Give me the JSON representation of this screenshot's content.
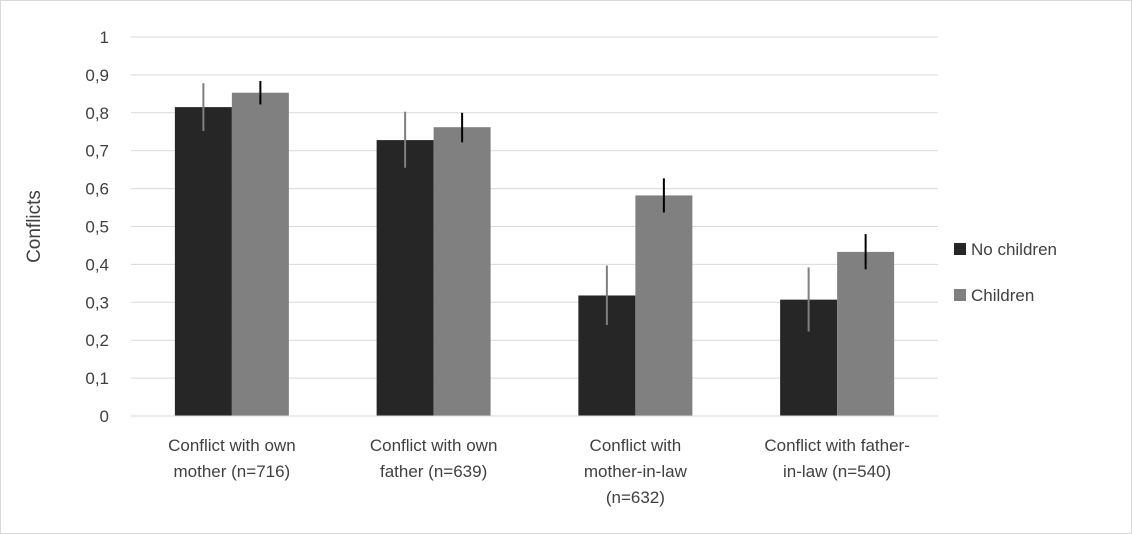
{
  "chart_data": {
    "type": "bar",
    "title": "",
    "xlabel": "",
    "ylabel": "Conflicts",
    "ylim": [
      0,
      1
    ],
    "yticks": [
      "0",
      "0,1",
      "0,2",
      "0,3",
      "0,4",
      "0,5",
      "0,6",
      "0,7",
      "0,8",
      "0,9",
      "1"
    ],
    "ytick_values": [
      0,
      0.1,
      0.2,
      0.3,
      0.4,
      0.5,
      0.6,
      0.7,
      0.8,
      0.9,
      1
    ],
    "grid": true,
    "legend_position": "right",
    "categories": [
      [
        "Conflict with own",
        "mother (n=716)"
      ],
      [
        "Conflict with own",
        "father (n=639)"
      ],
      [
        "Conflict with",
        "mother-in-law",
        "(n=632)"
      ],
      [
        "Conflict with father-",
        "in-law (n=540)"
      ]
    ],
    "series": [
      {
        "name": "No children",
        "color": "#262626",
        "errorbar_color": "#7f7f7f",
        "values": [
          0.815,
          0.728,
          0.318,
          0.307
        ],
        "error_low": [
          0.752,
          0.655,
          0.24,
          0.223
        ],
        "error_high": [
          0.878,
          0.803,
          0.397,
          0.392
        ]
      },
      {
        "name": "Children",
        "color": "#808080",
        "errorbar_color": "#000000",
        "values": [
          0.853,
          0.762,
          0.582,
          0.433
        ],
        "error_low": [
          0.822,
          0.722,
          0.537,
          0.387
        ],
        "error_high": [
          0.884,
          0.8,
          0.627,
          0.48
        ]
      }
    ]
  }
}
